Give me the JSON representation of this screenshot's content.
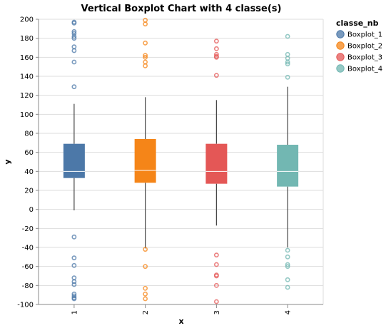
{
  "chart_data": {
    "type": "boxplot",
    "title": "Vertical Boxplot Chart with 4 classe(s)",
    "xlabel": "x",
    "ylabel": "y",
    "ylim": [
      -100,
      200
    ],
    "y_ticks": [
      -100,
      -80,
      -60,
      -40,
      -20,
      0,
      20,
      40,
      60,
      80,
      100,
      120,
      140,
      160,
      180,
      200
    ],
    "categories": [
      "1",
      "2",
      "3",
      "4"
    ],
    "grid": true,
    "legend": {
      "title": "classe_nb",
      "placement": "right"
    },
    "series": [
      {
        "name": "Boxplot_1",
        "color": "#4c78a8",
        "category": "1",
        "whisker_low": -1,
        "q1": 33,
        "median": 40,
        "q3": 69,
        "whisker_high": 111,
        "outliers": [
          197,
          196,
          187,
          185,
          182,
          180,
          171,
          167,
          155,
          129,
          -29,
          -51,
          -59,
          -72,
          -76,
          -79,
          -89,
          -91,
          -93,
          -94
        ]
      },
      {
        "name": "Boxplot_2",
        "color": "#f58518",
        "category": "2",
        "whisker_low": -41,
        "q1": 28,
        "median": 41,
        "q3": 74,
        "whisker_high": 118,
        "outliers": [
          199,
          195,
          175,
          162,
          160,
          155,
          151,
          -42,
          -60,
          -83,
          -89,
          -94
        ]
      },
      {
        "name": "Boxplot_3",
        "color": "#e45756",
        "category": "3",
        "whisker_low": -17,
        "q1": 27,
        "median": 40,
        "q3": 69,
        "whisker_high": 115,
        "outliers": [
          177,
          169,
          163,
          161,
          160,
          141,
          -48,
          -58,
          -69,
          -70,
          -80,
          -97
        ]
      },
      {
        "name": "Boxplot_4",
        "color": "#72b7b2",
        "category": "4",
        "whisker_low": -40,
        "q1": 24,
        "median": 40,
        "q3": 68,
        "whisker_high": 129,
        "outliers": [
          182,
          163,
          159,
          155,
          153,
          139,
          -43,
          -50,
          -58,
          -60,
          -74,
          -82
        ]
      }
    ]
  }
}
